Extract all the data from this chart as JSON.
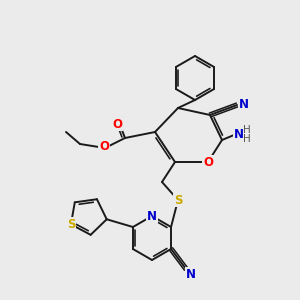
{
  "bg_color": "#ebebeb",
  "bond_color": "#1a1a1a",
  "atom_colors": {
    "O": "#ff0000",
    "N": "#0000cd",
    "S": "#ccaa00",
    "C": "#1a1a1a",
    "H": "#555555"
  },
  "figsize": [
    3.0,
    3.0
  ],
  "dpi": 100
}
